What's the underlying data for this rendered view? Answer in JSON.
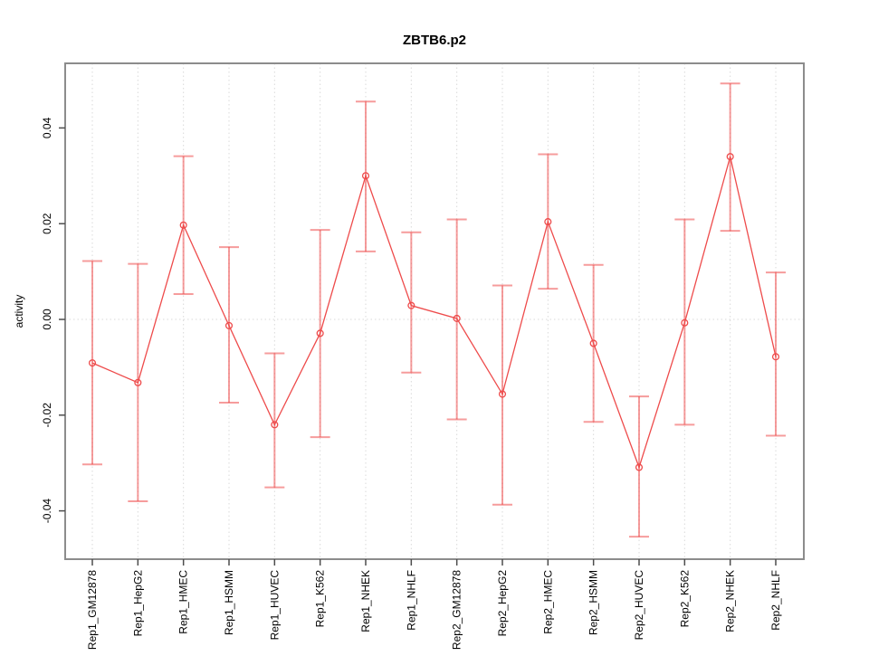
{
  "chart_data": {
    "type": "line",
    "title": "ZBTB6.p2",
    "xlabel": "",
    "ylabel": "activity",
    "categories": [
      "Rep1_GM12878",
      "Rep1_HepG2",
      "Rep1_HMEC",
      "Rep1_HSMM",
      "Rep1_HUVEC",
      "Rep1_K562",
      "Rep1_NHEK",
      "Rep1_NHLF",
      "Rep2_GM12878",
      "Rep2_HepG2",
      "Rep2_HMEC",
      "Rep2_HSMM",
      "Rep2_HUVEC",
      "Rep2_K562",
      "Rep2_NHEK",
      "Rep2_NHLF"
    ],
    "series": [
      {
        "name": "activity",
        "values": [
          -0.0091,
          -0.0132,
          0.0197,
          -0.0013,
          -0.022,
          -0.0029,
          0.03,
          0.0029,
          0.0002,
          -0.0156,
          0.0204,
          -0.005,
          -0.0309,
          -0.0007,
          0.034,
          -0.0078
        ],
        "error_high": [
          0.0122,
          0.0116,
          0.0341,
          0.0151,
          -0.0071,
          0.0187,
          0.0455,
          0.0182,
          0.0209,
          0.0071,
          0.0345,
          0.0114,
          -0.0161,
          0.0209,
          0.0493,
          0.0098
        ],
        "error_low": [
          -0.0303,
          -0.038,
          0.0053,
          -0.0174,
          -0.0351,
          -0.0246,
          0.0142,
          -0.0111,
          -0.0209,
          -0.0387,
          0.0064,
          -0.0214,
          -0.0454,
          -0.022,
          0.0185,
          -0.0243
        ]
      }
    ],
    "y_ticks": {
      "values": [
        -0.04,
        -0.02,
        0.0,
        0.02,
        0.04
      ],
      "labels": [
        "-0.04",
        "-0.02",
        "0.00",
        "0.02",
        "0.04"
      ]
    },
    "ylim": [
      -0.0503,
      0.0535
    ],
    "grid": {
      "vertical_per_category": true,
      "horizontal_zero_line": true,
      "style": "dotted"
    },
    "legend": "none",
    "colors": {
      "line": "#ee4b4b",
      "point": "#ee4b4b",
      "error_bar": "#ee4b4b",
      "error_bar_opacity": 0.55,
      "gridline": "#d9d9d9",
      "plot_border": "#8c8c8c",
      "tick": "#4d4d4d",
      "text": "#000000"
    }
  }
}
